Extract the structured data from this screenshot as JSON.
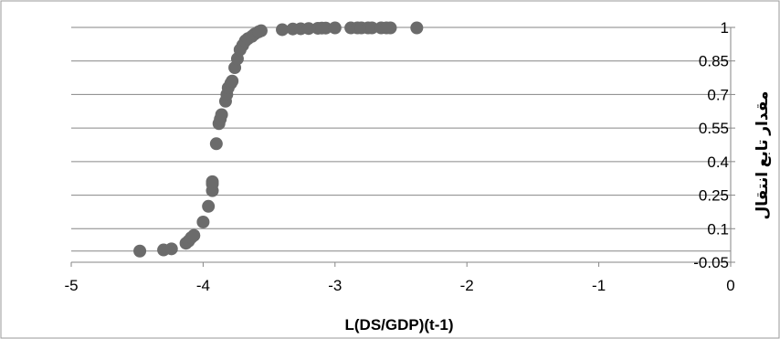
{
  "chart_data": {
    "type": "scatter",
    "title": "",
    "xlabel": "L(DS/GDP)(t-1)",
    "ylabel": "مقدار تابع انتقال",
    "xlim": [
      -5,
      0
    ],
    "ylim": [
      -0.05,
      1
    ],
    "x_ticks": [
      -5,
      -4,
      -3,
      -2,
      -1,
      0
    ],
    "x_tick_labels": [
      "-5",
      "-4",
      "-3",
      "-2",
      "-1",
      "0"
    ],
    "y_ticks": [
      -0.05,
      0.1,
      0.25,
      0.4,
      0.55,
      0.7,
      0.85,
      1
    ],
    "y_tick_labels": [
      "-0.05",
      "0.1",
      "0.25",
      "0.4",
      "0.55",
      "0.7",
      "0.85",
      "1"
    ],
    "grid": "horizontal",
    "marker_color": "#6b6b6b",
    "series": [
      {
        "x": [
          -4.48,
          -4.3,
          -4.24,
          -4.13,
          -4.11,
          -4.09,
          -4.07,
          -4.0,
          -3.96,
          -3.93,
          -3.93,
          -3.93,
          -3.9,
          -3.88,
          -3.87,
          -3.86,
          -3.83,
          -3.82,
          -3.81,
          -3.79,
          -3.78,
          -3.76,
          -3.74,
          -3.72,
          -3.7,
          -3.68,
          -3.66,
          -3.63,
          -3.61,
          -3.58,
          -3.56,
          -3.4,
          -3.32,
          -3.26,
          -3.2,
          -3.13,
          -3.1,
          -3.07,
          -3.0,
          -2.88,
          -2.83,
          -2.8,
          -2.75,
          -2.72,
          -2.65,
          -2.61,
          -2.58,
          -2.38
        ],
        "y": [
          0.0,
          0.005,
          0.01,
          0.035,
          0.045,
          0.06,
          0.07,
          0.13,
          0.2,
          0.27,
          0.3,
          0.31,
          0.48,
          0.57,
          0.59,
          0.61,
          0.67,
          0.7,
          0.73,
          0.75,
          0.76,
          0.82,
          0.86,
          0.9,
          0.92,
          0.94,
          0.95,
          0.96,
          0.97,
          0.98,
          0.985,
          0.99,
          0.993,
          0.994,
          0.995,
          0.996,
          0.997,
          0.997,
          0.998,
          0.998,
          0.998,
          0.998,
          0.998,
          0.998,
          0.998,
          0.998,
          0.998,
          0.998
        ]
      }
    ]
  }
}
